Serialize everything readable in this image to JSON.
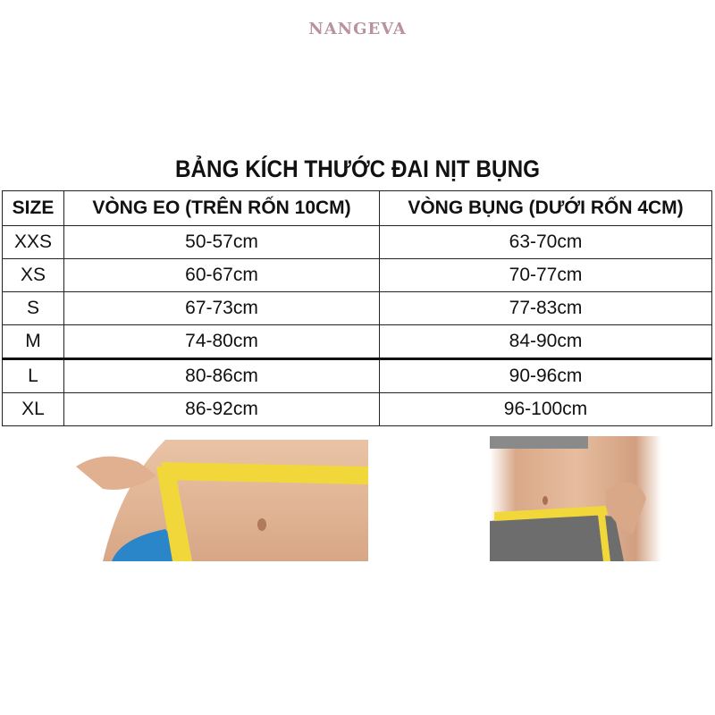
{
  "brand": "NANGEVA",
  "title": "BẢNG KÍCH THƯỚC ĐAI NỊT BỤNG",
  "table": {
    "headers": [
      "SIZE",
      "VÒNG EO (TRÊN RỐN 10CM)",
      "VÒNG BỤNG (DƯỚI RỐN 4CM)"
    ],
    "rows": [
      [
        "XXS",
        "50-57cm",
        "63-70cm"
      ],
      [
        "XS",
        "60-67cm",
        "70-77cm"
      ],
      [
        "S",
        "67-73cm",
        "77-83cm"
      ],
      [
        "M",
        "74-80cm",
        "84-90cm"
      ],
      [
        "L",
        "80-86cm",
        "90-96cm"
      ],
      [
        "XL",
        "86-92cm",
        "96-100cm"
      ]
    ]
  },
  "photos": [
    {
      "subject": "waist-measurement-photo"
    },
    {
      "subject": "belly-measurement-photo"
    }
  ],
  "colors": {
    "brand": "#b8939c",
    "tape": "#f2d73a"
  }
}
